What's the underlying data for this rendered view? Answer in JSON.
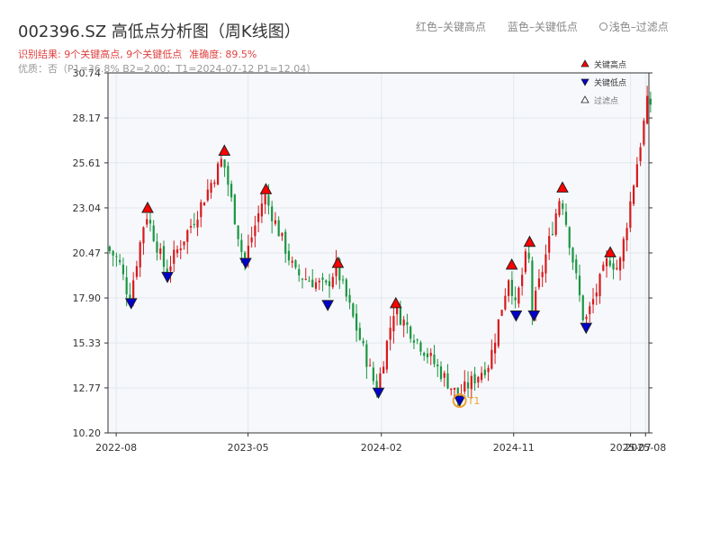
{
  "header": {
    "title": "002396.SZ 高低点分析图（周K线图）",
    "result_prefix": "识别结果: ",
    "result_highs": "9个关键高点, 9个关键低点",
    "result_accuracy": "准确度: 89.5%",
    "quality": "优质：否（P1=36.8%  B2=2.00；T1=2024-07-12 P1=12.04）"
  },
  "top_legend": {
    "red": "红色–关键高点",
    "blue": "蓝色–关键低点",
    "light": "浅色–过滤点"
  },
  "colors": {
    "up": "#d7191c",
    "down": "#1a9641",
    "high_marker": "#ff0000",
    "low_marker": "#0000cc",
    "highlight": "#f0a030",
    "plot_bg": "#f6f8fb",
    "grid": "#e3e7ed"
  },
  "chart_data": {
    "type": "candlestick",
    "x_ticks": [
      {
        "label": "2022-08",
        "date": "2022-08-01"
      },
      {
        "label": "2023-05",
        "date": "2023-05-01"
      },
      {
        "label": "2024-02",
        "date": "2024-02-01"
      },
      {
        "label": "2024-11",
        "date": "2024-11-01"
      },
      {
        "label": "2025-07",
        "date": "2025-07-01"
      },
      {
        "label": "2025-08",
        "date": "2025-08-01"
      }
    ],
    "x_range": [
      "2022-07-15",
      "2025-08-08"
    ],
    "ylim": [
      10.2,
      30.74
    ],
    "y_ticks": [
      "10.20",
      "12.77",
      "15.33",
      "17.90",
      "20.47",
      "23.04",
      "25.61",
      "28.17",
      "30.74"
    ],
    "grid": true,
    "legend": {
      "position": "top-right",
      "entries": [
        {
          "name": "关键高点",
          "marker": "triangle-up-red"
        },
        {
          "name": "关键低点",
          "marker": "triangle-down-blue"
        },
        {
          "name": "过滤点",
          "marker": "triangle-up-hollow"
        }
      ]
    },
    "anchors": [
      {
        "date": "2022-07-15",
        "price": 20.8
      },
      {
        "date": "2022-08-10",
        "price": 20.0
      },
      {
        "date": "2022-09-01",
        "price": 17.8
      },
      {
        "date": "2022-10-05",
        "price": 22.8
      },
      {
        "date": "2022-11-15",
        "price": 19.4
      },
      {
        "date": "2023-01-15",
        "price": 22.5
      },
      {
        "date": "2023-03-13",
        "price": 25.9
      },
      {
        "date": "2023-04-26",
        "price": 19.9
      },
      {
        "date": "2023-06-07",
        "price": 23.8
      },
      {
        "date": "2023-08-10",
        "price": 19.3
      },
      {
        "date": "2023-10-13",
        "price": 18.5
      },
      {
        "date": "2023-11-03",
        "price": 19.7
      },
      {
        "date": "2024-01-26",
        "price": 12.6
      },
      {
        "date": "2024-03-02",
        "price": 17.3
      },
      {
        "date": "2024-07-12",
        "price": 12.3
      },
      {
        "date": "2024-09-15",
        "price": 14.2
      },
      {
        "date": "2024-10-28",
        "price": 19.5
      },
      {
        "date": "2024-11-06",
        "price": 17.1
      },
      {
        "date": "2024-12-04",
        "price": 20.8
      },
      {
        "date": "2024-12-13",
        "price": 17.1
      },
      {
        "date": "2025-02-10",
        "price": 23.9
      },
      {
        "date": "2025-03-31",
        "price": 16.4
      },
      {
        "date": "2025-05-20",
        "price": 20.2
      },
      {
        "date": "2025-06-10",
        "price": 19.5
      },
      {
        "date": "2025-08-08",
        "price": 29.0
      }
    ],
    "key_highs": [
      {
        "date": "2022-10-05",
        "price": 23.04
      },
      {
        "date": "2023-03-13",
        "price": 26.3
      },
      {
        "date": "2023-06-07",
        "price": 24.1
      },
      {
        "date": "2023-11-03",
        "price": 19.9
      },
      {
        "date": "2024-03-02",
        "price": 17.6
      },
      {
        "date": "2024-10-28",
        "price": 19.8
      },
      {
        "date": "2024-12-04",
        "price": 21.1
      },
      {
        "date": "2025-02-10",
        "price": 24.2
      },
      {
        "date": "2025-05-20",
        "price": 20.5
      }
    ],
    "key_lows": [
      {
        "date": "2022-09-01",
        "price": 17.6
      },
      {
        "date": "2022-11-15",
        "price": 19.1
      },
      {
        "date": "2023-04-26",
        "price": 19.9
      },
      {
        "date": "2023-10-13",
        "price": 17.5
      },
      {
        "date": "2024-01-26",
        "price": 12.5
      },
      {
        "date": "2024-07-12",
        "price": 12.04
      },
      {
        "date": "2024-11-06",
        "price": 16.9
      },
      {
        "date": "2024-12-13",
        "price": 16.9
      },
      {
        "date": "2025-03-31",
        "price": 16.2
      }
    ],
    "highlight": {
      "label": "T1",
      "date": "2024-07-12",
      "price": 12.04
    }
  }
}
